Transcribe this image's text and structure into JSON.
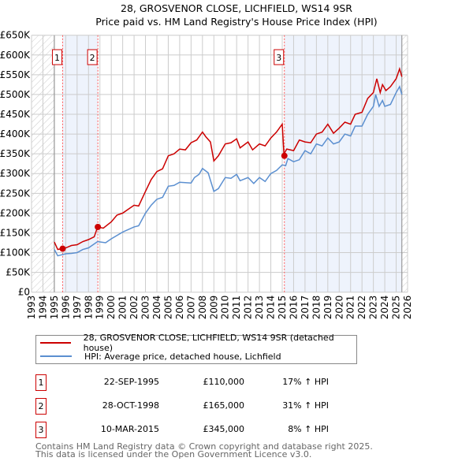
{
  "chart_data": {
    "type": "line",
    "title": "28, GROSVENOR CLOSE, LICHFIELD, WS14 9SR",
    "subtitle": "Price paid vs. HM Land Registry's House Price Index (HPI)",
    "xlim": [
      1993,
      2026
    ],
    "ylim": [
      0,
      650000
    ],
    "x_ticks": [
      "1993",
      "1994",
      "1995",
      "1996",
      "1997",
      "1998",
      "1999",
      "2000",
      "2001",
      "2002",
      "2003",
      "2004",
      "2005",
      "2006",
      "2007",
      "2008",
      "2009",
      "2010",
      "2011",
      "2012",
      "2013",
      "2014",
      "2015",
      "2016",
      "2017",
      "2018",
      "2019",
      "2020",
      "2021",
      "2022",
      "2023",
      "2024",
      "2025",
      "2026"
    ],
    "y_ticks": [
      {
        "v": 0,
        "label": "£0"
      },
      {
        "v": 50000,
        "label": "£50K"
      },
      {
        "v": 100000,
        "label": "£100K"
      },
      {
        "v": 150000,
        "label": "£150K"
      },
      {
        "v": 200000,
        "label": "£200K"
      },
      {
        "v": 250000,
        "label": "£250K"
      },
      {
        "v": 300000,
        "label": "£300K"
      },
      {
        "v": 350000,
        "label": "£350K"
      },
      {
        "v": 400000,
        "label": "£400K"
      },
      {
        "v": 450000,
        "label": "£450K"
      },
      {
        "v": 500000,
        "label": "£500K"
      },
      {
        "v": 550000,
        "label": "£550K"
      },
      {
        "v": 600000,
        "label": "£600K"
      },
      {
        "v": 650000,
        "label": "£650K"
      }
    ],
    "grid": true,
    "series": [
      {
        "name": "28, GROSVENOR CLOSE, LICHFIELD, WS14 9SR (detached house)",
        "color": "#cc0000",
        "points": [
          [
            1995,
            127
          ],
          [
            1995.3,
            108
          ],
          [
            1995.7,
            110
          ],
          [
            1996,
            112
          ],
          [
            1996.5,
            118
          ],
          [
            1997,
            120
          ],
          [
            1997.5,
            128
          ],
          [
            1998,
            133
          ],
          [
            1998.5,
            140
          ],
          [
            1998.8,
            165
          ],
          [
            1999.3,
            162
          ],
          [
            2000,
            178
          ],
          [
            2000.5,
            195
          ],
          [
            2001,
            200
          ],
          [
            2001.5,
            210
          ],
          [
            2002,
            220
          ],
          [
            2002.4,
            218
          ],
          [
            2003,
            255
          ],
          [
            2003.5,
            285
          ],
          [
            2004,
            305
          ],
          [
            2004.5,
            312
          ],
          [
            2005,
            345
          ],
          [
            2005.5,
            350
          ],
          [
            2006,
            362
          ],
          [
            2006.5,
            360
          ],
          [
            2007,
            378
          ],
          [
            2007.5,
            385
          ],
          [
            2008,
            405
          ],
          [
            2008.3,
            393
          ],
          [
            2008.7,
            380
          ],
          [
            2009,
            332
          ],
          [
            2009.4,
            345
          ],
          [
            2010,
            375
          ],
          [
            2010.5,
            378
          ],
          [
            2011,
            388
          ],
          [
            2011.3,
            365
          ],
          [
            2012,
            380
          ],
          [
            2012.4,
            360
          ],
          [
            2013,
            375
          ],
          [
            2013.5,
            370
          ],
          [
            2014,
            390
          ],
          [
            2014.5,
            405
          ],
          [
            2015,
            425
          ],
          [
            2015.15,
            350
          ],
          [
            2015.4,
            362
          ],
          [
            2016,
            358
          ],
          [
            2016.5,
            385
          ],
          [
            2017,
            380
          ],
          [
            2017.5,
            378
          ],
          [
            2018,
            400
          ],
          [
            2018.5,
            405
          ],
          [
            2019,
            425
          ],
          [
            2019.5,
            402
          ],
          [
            2020,
            415
          ],
          [
            2020.5,
            430
          ],
          [
            2021,
            425
          ],
          [
            2021.4,
            450
          ],
          [
            2022,
            455
          ],
          [
            2022.5,
            490
          ],
          [
            2023,
            505
          ],
          [
            2023.3,
            540
          ],
          [
            2023.6,
            505
          ],
          [
            2023.8,
            525
          ],
          [
            2024.1,
            510
          ],
          [
            2024.5,
            520
          ],
          [
            2025,
            540
          ],
          [
            2025.3,
            565
          ],
          [
            2025.5,
            545
          ]
        ]
      },
      {
        "name": "HPI: Average price, detached house, Lichfield",
        "color": "#5b8fd0",
        "points": [
          [
            1995,
            108
          ],
          [
            1995.3,
            92
          ],
          [
            1996,
            97
          ],
          [
            1996.5,
            98
          ],
          [
            1997,
            100
          ],
          [
            1997.5,
            108
          ],
          [
            1998,
            112
          ],
          [
            1998.8,
            128
          ],
          [
            1999.5,
            125
          ],
          [
            2000,
            135
          ],
          [
            2001,
            152
          ],
          [
            2002,
            165
          ],
          [
            2002.4,
            168
          ],
          [
            2003,
            200
          ],
          [
            2003.5,
            220
          ],
          [
            2004,
            235
          ],
          [
            2004.5,
            240
          ],
          [
            2005,
            268
          ],
          [
            2005.5,
            270
          ],
          [
            2006,
            278
          ],
          [
            2007,
            276
          ],
          [
            2007.3,
            290
          ],
          [
            2007.7,
            298
          ],
          [
            2008,
            313
          ],
          [
            2008.5,
            302
          ],
          [
            2009,
            255
          ],
          [
            2009.4,
            262
          ],
          [
            2010,
            290
          ],
          [
            2010.5,
            288
          ],
          [
            2011,
            298
          ],
          [
            2011.3,
            282
          ],
          [
            2012,
            290
          ],
          [
            2012.5,
            275
          ],
          [
            2013,
            290
          ],
          [
            2013.5,
            280
          ],
          [
            2014,
            300
          ],
          [
            2014.5,
            308
          ],
          [
            2015,
            322
          ],
          [
            2015.3,
            320
          ],
          [
            2015.5,
            338
          ],
          [
            2016,
            330
          ],
          [
            2016.5,
            335
          ],
          [
            2017,
            358
          ],
          [
            2017.5,
            350
          ],
          [
            2018,
            375
          ],
          [
            2018.5,
            370
          ],
          [
            2019,
            390
          ],
          [
            2019.5,
            375
          ],
          [
            2020,
            380
          ],
          [
            2020.5,
            400
          ],
          [
            2021,
            395
          ],
          [
            2021.4,
            420
          ],
          [
            2022,
            420
          ],
          [
            2022.5,
            450
          ],
          [
            2023,
            470
          ],
          [
            2023.2,
            500
          ],
          [
            2023.5,
            470
          ],
          [
            2023.8,
            485
          ],
          [
            2024,
            470
          ],
          [
            2024.5,
            475
          ],
          [
            2025,
            505
          ],
          [
            2025.3,
            520
          ],
          [
            2025.5,
            500
          ]
        ]
      }
    ],
    "sales": [
      {
        "id": "1",
        "year": 1995.73,
        "price": 110000,
        "date": "22-SEP-1995",
        "price_label": "£110,000",
        "hpi": "17% ↑ HPI"
      },
      {
        "id": "2",
        "year": 1998.82,
        "price": 165000,
        "date": "28-OCT-1998",
        "price_label": "£165,000",
        "hpi": "31% ↑ HPI"
      },
      {
        "id": "3",
        "year": 2015.19,
        "price": 345000,
        "date": "10-MAR-2015",
        "price_label": "£345,000",
        "hpi": "8% ↑ HPI"
      }
    ],
    "data_start": 1995,
    "data_end": 2025.5
  },
  "legend": {
    "red": "28, GROSVENOR CLOSE, LICHFIELD, WS14 9SR (detached house)",
    "blue": "HPI: Average price, detached house, Lichfield"
  },
  "footer": {
    "line1": "Contains HM Land Registry data © Crown copyright and database right 2025.",
    "line2": "This data is licensed under the Open Government Licence v3.0."
  }
}
